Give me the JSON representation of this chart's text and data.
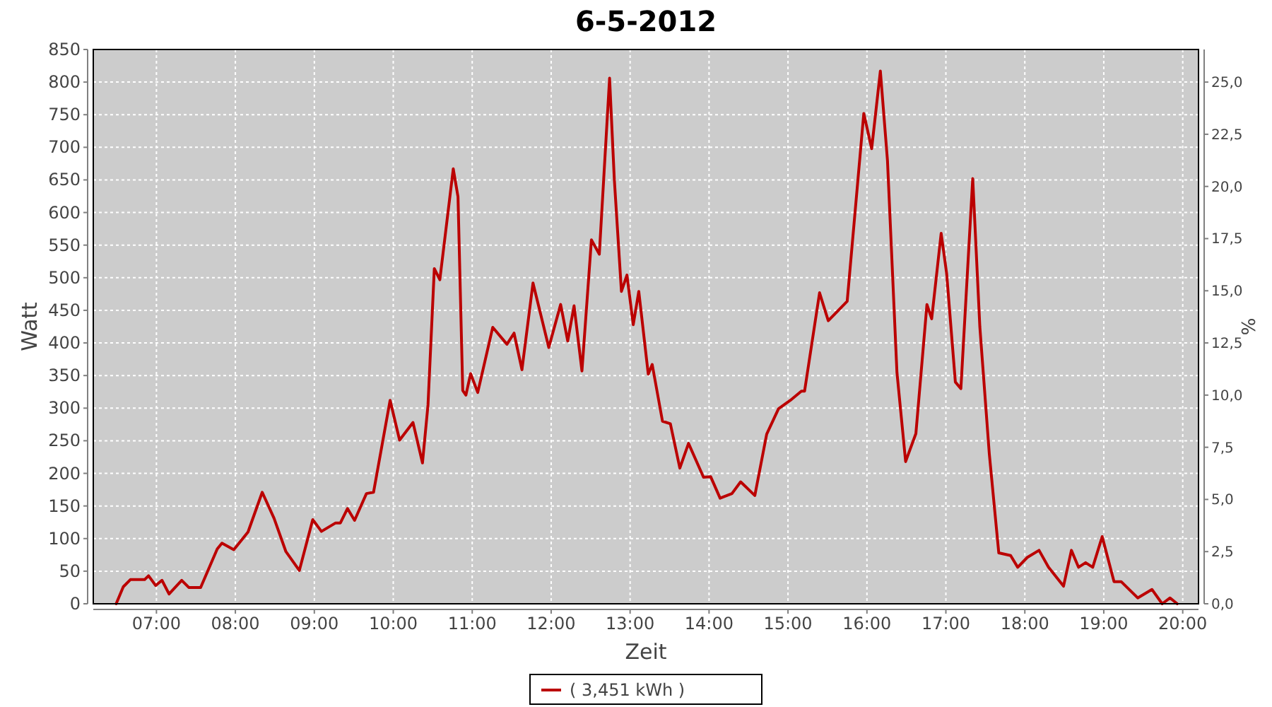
{
  "chart_data": {
    "type": "line",
    "title": "6-5-2012",
    "xlabel": "Zeit",
    "ylabel": "Watt",
    "y2label": "%",
    "xlim": [
      6.2,
      20.2
    ],
    "xticks": [
      {
        "value": 7,
        "label": "07:00"
      },
      {
        "value": 8,
        "label": "08:00"
      },
      {
        "value": 9,
        "label": "09:00"
      },
      {
        "value": 10,
        "label": "10:00"
      },
      {
        "value": 11,
        "label": "11:00"
      },
      {
        "value": 12,
        "label": "12:00"
      },
      {
        "value": 13,
        "label": "13:00"
      },
      {
        "value": 14,
        "label": "14:00"
      },
      {
        "value": 15,
        "label": "15:00"
      },
      {
        "value": 16,
        "label": "16:00"
      },
      {
        "value": 17,
        "label": "17:00"
      },
      {
        "value": 18,
        "label": "18:00"
      },
      {
        "value": 19,
        "label": "19:00"
      },
      {
        "value": 20,
        "label": "20:00"
      }
    ],
    "ylim": [
      0,
      850
    ],
    "yticks": [
      0,
      50,
      100,
      150,
      200,
      250,
      300,
      350,
      400,
      450,
      500,
      550,
      600,
      650,
      700,
      750,
      800,
      850
    ],
    "y2lim": [
      0,
      26.5625
    ],
    "y2ticks": [
      {
        "value": 0,
        "label": "0,0"
      },
      {
        "value": 2.5,
        "label": "2,5"
      },
      {
        "value": 5,
        "label": "5,0"
      },
      {
        "value": 7.5,
        "label": "7,5"
      },
      {
        "value": 10,
        "label": "10,0"
      },
      {
        "value": 12.5,
        "label": "12,5"
      },
      {
        "value": 15,
        "label": "15,0"
      },
      {
        "value": 17.5,
        "label": "17,5"
      },
      {
        "value": 20,
        "label": "20,0"
      },
      {
        "value": 22.5,
        "label": "22,5"
      },
      {
        "value": 25,
        "label": "25,0"
      }
    ],
    "grid": true,
    "legend": "bottom",
    "series": [
      {
        "name": "( 3,451 kWh )",
        "color": "#bb0000",
        "x": [
          6.49,
          6.58,
          6.67,
          6.85,
          6.9,
          6.99,
          7.07,
          7.16,
          7.32,
          7.41,
          7.56,
          7.77,
          7.83,
          7.98,
          8.16,
          8.34,
          8.49,
          8.64,
          8.81,
          8.98,
          9.09,
          9.27,
          9.33,
          9.42,
          9.51,
          9.66,
          9.75,
          9.96,
          10.08,
          10.25,
          10.37,
          10.44,
          10.52,
          10.59,
          10.76,
          10.82,
          10.88,
          10.92,
          10.98,
          11.07,
          11.26,
          11.44,
          11.53,
          11.63,
          11.77,
          11.97,
          12.12,
          12.21,
          12.29,
          12.39,
          12.51,
          12.61,
          12.74,
          12.8,
          12.89,
          12.96,
          13.04,
          13.11,
          13.23,
          13.28,
          13.41,
          13.51,
          13.63,
          13.74,
          13.93,
          14.02,
          14.14,
          14.29,
          14.4,
          14.58,
          14.73,
          14.88,
          15.03,
          15.17,
          15.21,
          15.4,
          15.51,
          15.75,
          15.96,
          16.06,
          16.17,
          16.26,
          16.38,
          16.49,
          16.62,
          16.76,
          16.82,
          16.94,
          17.01,
          17.12,
          17.19,
          17.34,
          17.43,
          17.55,
          17.67,
          17.82,
          17.91,
          18.03,
          18.18,
          18.3,
          18.49,
          18.59,
          18.68,
          18.77,
          18.86,
          18.98,
          19.13,
          19.22,
          19.43,
          19.61,
          19.74,
          19.84,
          19.93
        ],
        "values": [
          0,
          26,
          37,
          37,
          43,
          28,
          36,
          15,
          36,
          25,
          25,
          84,
          93,
          83,
          110,
          171,
          131,
          80,
          51,
          129,
          111,
          124,
          124,
          146,
          128,
          169,
          171,
          312,
          251,
          278,
          216,
          305,
          514,
          497,
          667,
          624,
          327,
          320,
          353,
          324,
          424,
          398,
          415,
          359,
          492,
          393,
          459,
          403,
          457,
          357,
          558,
          536,
          806,
          651,
          479,
          504,
          428,
          479,
          352,
          367,
          280,
          276,
          208,
          246,
          194,
          195,
          162,
          169,
          187,
          166,
          260,
          299,
          312,
          326,
          326,
          477,
          434,
          464,
          752,
          698,
          817,
          680,
          355,
          218,
          261,
          459,
          437,
          568,
          506,
          340,
          330,
          652,
          425,
          230,
          78,
          74,
          56,
          71,
          82,
          56,
          27,
          82,
          56,
          63,
          56,
          103,
          34,
          34,
          9,
          22,
          0,
          9,
          0
        ]
      }
    ]
  }
}
